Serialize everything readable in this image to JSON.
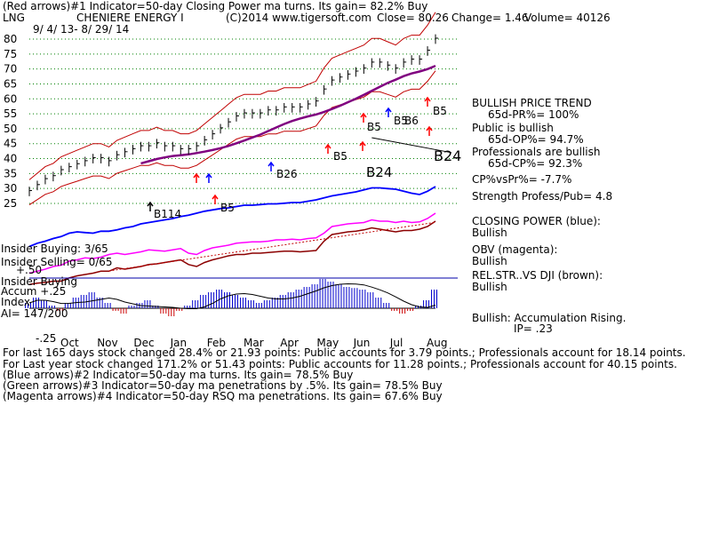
{
  "header": {
    "line1": "(Red arrows)#1 Indicator=50-day Closing Power ma turns.  Its gain= 82.2% Buy",
    "ticker": "LNG",
    "company": "CHENIERE ENERGY I",
    "copyright": "(C)2014 www.tigersoft.com",
    "close": "Close=  80.26",
    "change": "Change= 1.46",
    "volume": "Volume= 40126",
    "date_range": "9/ 4/ 13-  8/ 29/ 14"
  },
  "right_panel": {
    "trend_title": "BULLISH PRICE TREND",
    "pr": "65d-PR%= 100%",
    "public": "Public is bullish",
    "op": "65d-OP%= 94.7%",
    "professionals": "Professionals are bullish",
    "cp": "65d-CP%= 92.3%",
    "cpvspr": "CP%vsPr%= -7.7%",
    "strength": "Strength Profess/Pub= 4.8",
    "closing_power_label": "CLOSING POWER (blue):",
    "closing_power_value": "Bullish",
    "obv_label": "OBV (magenta):",
    "obv_value": "Bullish",
    "relstr_label": "REL.STR..VS DJI (brown):",
    "relstr_value": "Bullish",
    "accum_label": "Bullish: Accumulation Rising.",
    "ip": "IP=  .23"
  },
  "left_labels": {
    "insider_buying": "Insider Buying: 3/65",
    "insider_selling": "Insider Selling= 0/65",
    "insider_buying2": "Insider Buying",
    "accum_index": "Accum  +.25",
    "index": "Index",
    "ai": "AI= 147/200",
    "minus50": "+.50",
    "minus25": "-.25"
  },
  "signals": {
    "b24_big": "B24",
    "b24_mid": "B24",
    "b26": "B26",
    "b5_1": "B5",
    "b5_2": "B5",
    "b5_3": "B5",
    "b5_4": "B5",
    "b6": "B6",
    "b5_low": "B5",
    "b11": "B114"
  },
  "footer": {
    "line1": "For last 165 days stock changed  28.4% or  21.93 points:  Public accounts for   3.79 points.;  Professionals account for  18.14 points.",
    "line2": "For Last year stock changed  171.2% or  51.43 points:  Public accounts for  11.28 points.;  Professionals account for  40.15 points.",
    "line3": "(Blue arrows)#2 Indicator=50-day ma turns.  Its gain= 78.5% Buy",
    "line4": "(Green arrows)#3 Indicator=50-day ma penetrations by .5%.  Its gain= 78.5% Buy",
    "line5": "(Magenta arrows)#4 Indicator=50-day RSQ ma penetrations.  Its gain= 67.6% Buy"
  },
  "colors": {
    "price": "#000000",
    "band": "#c00000",
    "ma": "#800080",
    "closing_power": "#0000ff",
    "obv": "#ff00ff",
    "relstr": "#8b0000",
    "accum_up": "#0000cc",
    "accum_down": "#cc0000",
    "grid": "#008000"
  },
  "chart_data": {
    "type": "line",
    "y_ticks": [
      "80",
      "75",
      "70",
      "65",
      "60",
      "55",
      "50",
      "45",
      "40",
      "35",
      "30",
      "25"
    ],
    "ylim": [
      25,
      80
    ],
    "x_ticks": [
      "Oct",
      "Nov",
      "Dec",
      "Jan",
      "Feb",
      "Mar",
      "Apr",
      "May",
      "Jun",
      "Jul",
      "Aug"
    ],
    "series": [
      {
        "values": [
          29,
          31,
          33,
          34,
          36,
          37,
          38,
          39,
          40,
          40,
          39,
          41,
          42,
          43,
          44,
          44,
          45,
          44,
          44,
          43,
          43,
          44,
          46,
          48,
          50,
          52,
          54,
          55,
          55,
          55,
          56,
          56,
          57,
          57,
          57,
          58,
          59,
          63,
          66,
          67,
          68,
          69,
          70,
          72,
          72,
          71,
          70,
          72,
          73,
          73,
          76,
          80
        ]
      },
      {
        "name": "CLOSING POWER",
        "values": [
          0.1,
          0.15,
          0.18,
          0.22,
          0.25,
          0.3,
          0.32,
          0.31,
          0.3,
          0.33,
          0.33,
          0.35,
          0.38,
          0.4,
          0.44,
          0.46,
          0.48,
          0.5,
          0.52,
          0.55,
          0.57,
          0.6,
          0.63,
          0.65,
          0.67,
          0.68,
          0.7,
          0.72,
          0.72,
          0.73,
          0.74,
          0.74,
          0.75,
          0.76,
          0.76,
          0.78,
          0.8,
          0.83,
          0.86,
          0.88,
          0.9,
          0.92,
          0.95,
          0.98,
          0.98,
          0.97,
          0.96,
          0.93,
          0.9,
          0.88,
          0.93,
          1.0
        ]
      },
      {
        "name": "OBV",
        "values": [
          0.1,
          0.13,
          0.16,
          0.2,
          0.22,
          0.28,
          0.3,
          0.33,
          0.32,
          0.34,
          0.38,
          0.4,
          0.38,
          0.4,
          0.42,
          0.45,
          0.44,
          0.43,
          0.45,
          0.47,
          0.4,
          0.38,
          0.44,
          0.48,
          0.5,
          0.52,
          0.55,
          0.56,
          0.57,
          0.57,
          0.58,
          0.6,
          0.6,
          0.61,
          0.6,
          0.62,
          0.63,
          0.7,
          0.8,
          0.82,
          0.84,
          0.85,
          0.86,
          0.9,
          0.88,
          0.88,
          0.86,
          0.88,
          0.86,
          0.87,
          0.92,
          1.0
        ]
      },
      {
        "name": "REL.STR..VS DJI",
        "values": [
          0.05,
          0.07,
          0.08,
          0.1,
          0.1,
          0.15,
          0.18,
          0.2,
          0.22,
          0.25,
          0.25,
          0.3,
          0.28,
          0.3,
          0.32,
          0.35,
          0.36,
          0.38,
          0.4,
          0.42,
          0.35,
          0.32,
          0.38,
          0.42,
          0.45,
          0.48,
          0.5,
          0.5,
          0.52,
          0.52,
          0.53,
          0.54,
          0.55,
          0.55,
          0.54,
          0.55,
          0.56,
          0.7,
          0.8,
          0.82,
          0.84,
          0.85,
          0.87,
          0.9,
          0.88,
          0.86,
          0.84,
          0.86,
          0.86,
          0.88,
          0.92,
          1.0
        ]
      },
      {
        "name": "Accum",
        "values": [
          0.1,
          0.2,
          0.15,
          0.05,
          -0.05,
          0.1,
          0.2,
          0.25,
          0.3,
          0.2,
          0.1,
          -0.05,
          -0.1,
          0.05,
          0.1,
          0.15,
          0.05,
          -0.1,
          -0.15,
          -0.05,
          0.05,
          0.15,
          0.25,
          0.3,
          0.35,
          0.3,
          0.25,
          0.2,
          0.15,
          0.1,
          0.15,
          0.2,
          0.25,
          0.3,
          0.35,
          0.4,
          0.45,
          0.55,
          0.5,
          0.45,
          0.4,
          0.38,
          0.35,
          0.3,
          0.2,
          0.1,
          -0.05,
          -0.1,
          -0.05,
          0.05,
          0.15,
          0.35
        ]
      }
    ]
  }
}
